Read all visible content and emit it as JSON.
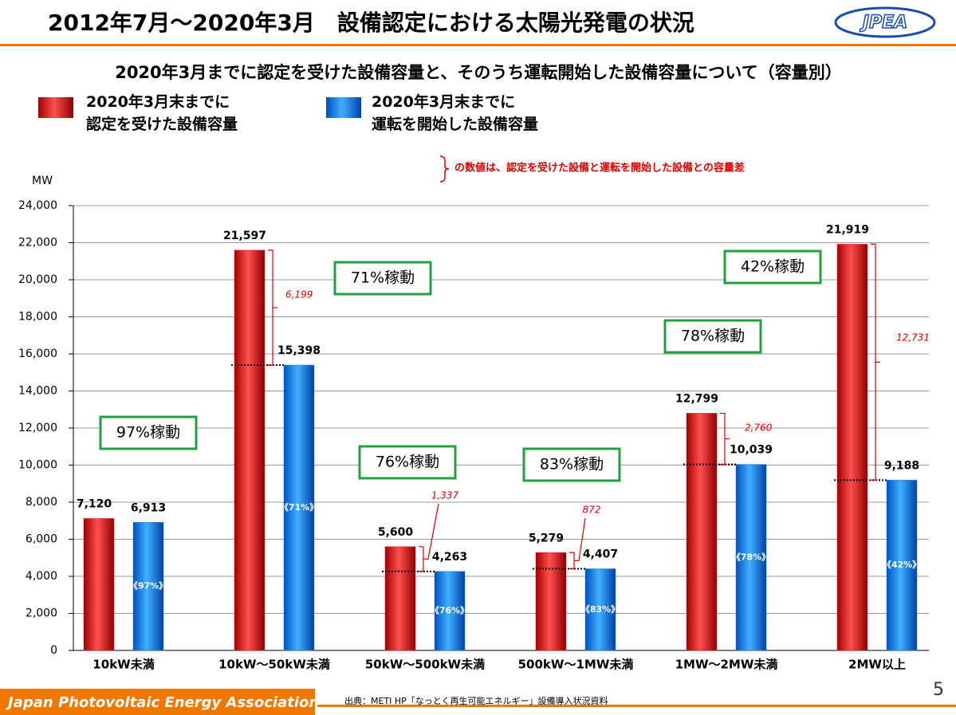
{
  "header": {
    "title": "2012年7月～2020年3月　設備認定における太陽光発電の状況",
    "logo": "JPEA"
  },
  "chart_data": {
    "type": "bar",
    "title": "2020年3月までに認定を受けた設備容量と、そのうち運転開始した設備容量について（容量別）",
    "y_label": "MW",
    "note": "の数値は、認定を受けた設備と運転を開始した設備との容量差",
    "categories": [
      "10kW未満",
      "10kW～50kW未満",
      "50kW～500kW未満",
      "500kW～1MW未満",
      "1MW～2MW未満",
      "2MW以上"
    ],
    "series": [
      {
        "name": "2020年3月末までに\n認定を受けた設備容量",
        "color": "#e02020",
        "values": [
          7120,
          21597,
          5600,
          5279,
          12799,
          21919
        ],
        "value_labels": [
          "7,120",
          "21,597",
          "5,600",
          "5,279",
          "12,799",
          "21,919"
        ]
      },
      {
        "name": "2020年3月末までに\n運転を開始した設備容量",
        "color": "#1a7fe8",
        "values": [
          6913,
          15398,
          4263,
          4407,
          10039,
          9188
        ],
        "value_labels": [
          "6,913",
          "15,398",
          "4,263",
          "4,407",
          "10,039",
          "9,188"
        ],
        "inner_labels": [
          "《97%》",
          "《71%》",
          "《76%》",
          "《83%》",
          "《78%》",
          "《42%》"
        ]
      }
    ],
    "differences": [
      null,
      6199,
      1337,
      872,
      2760,
      12731
    ],
    "difference_labels": [
      null,
      "6,199",
      "1,337",
      "872",
      "2,760",
      "12,731"
    ],
    "ratio_labels": [
      "97%稼動",
      "71%稼動",
      "76%稼動",
      "83%稼動",
      "78%稼動",
      "42%稼動"
    ],
    "ylim": [
      0,
      24000
    ],
    "yticks": [
      0,
      {
        "value": 2000,
        "label": "2,000"
      },
      {
        "value": 4000,
        "label": "4,000"
      },
      {
        "value": 6000,
        "label": "6,000"
      },
      {
        "value": 8000,
        "label": "8,000"
      },
      {
        "value": 10000,
        "label": "10,000"
      },
      {
        "value": 12000,
        "label": "12,000"
      },
      {
        "value": 14000,
        "label": "14,000"
      },
      {
        "value": 16000,
        "label": "16,000"
      },
      {
        "value": 18000,
        "label": "18,000"
      },
      {
        "value": 20000,
        "label": "20,000"
      },
      {
        "value": 22000,
        "label": "22,000"
      },
      {
        "value": 24000,
        "label": "24,000"
      }
    ],
    "grid": true
  },
  "footer": {
    "organization": "Japan Photovoltaic Energy Association",
    "source": "出典：METI HP「なっとく再生可能エネルギー」設備導入状況資料",
    "page": "5"
  }
}
